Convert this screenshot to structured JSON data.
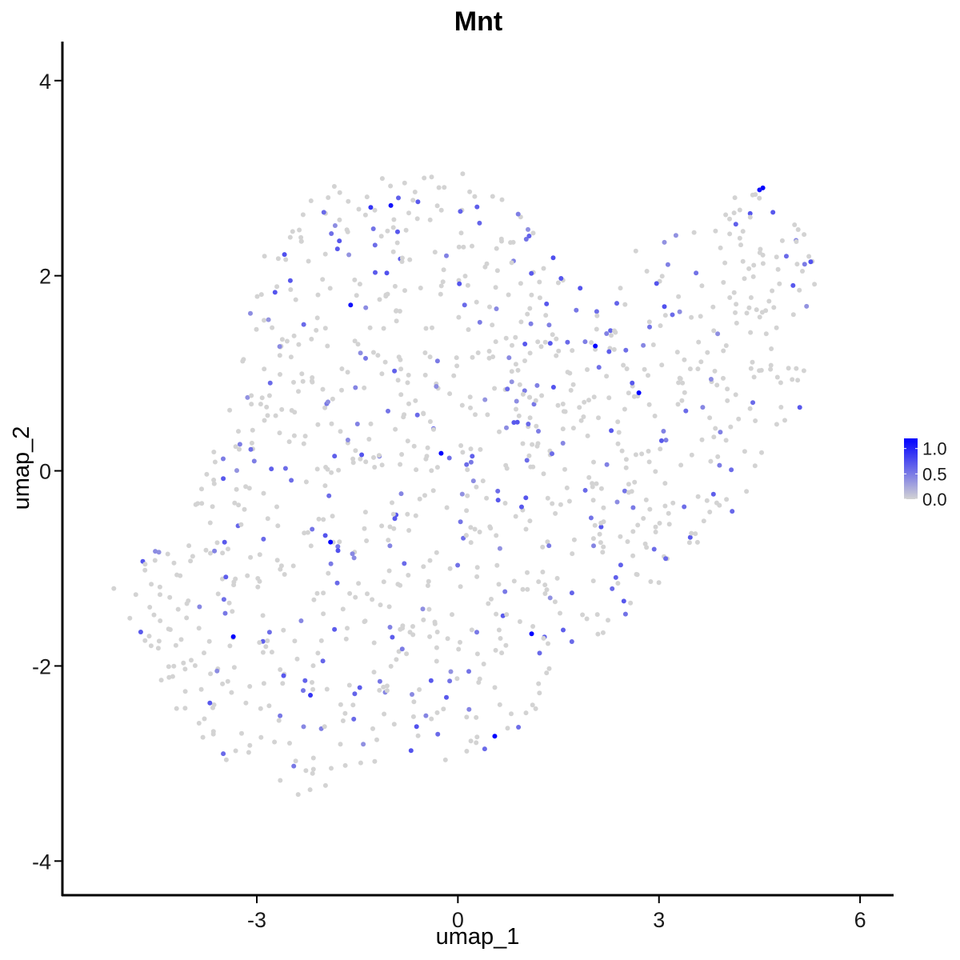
{
  "chart_data": {
    "type": "scatter",
    "title": "Mnt",
    "xlabel": "umap_1",
    "ylabel": "umap_2",
    "xlim": [
      -5.9,
      6.5
    ],
    "ylim": [
      -4.35,
      4.4
    ],
    "x_ticks": [
      -3,
      0,
      3,
      6
    ],
    "x_tick_labels": [
      "-3",
      "0",
      "3",
      "6"
    ],
    "y_ticks": [
      -4,
      -2,
      0,
      2,
      4
    ],
    "y_tick_labels": [
      "-4",
      "-2",
      "0",
      "2",
      "4"
    ],
    "grid": false,
    "legend": {
      "placement": "right",
      "type": "colorbar",
      "min": 0.0,
      "max": 1.2,
      "tick_values": [
        1.0,
        0.5,
        0.0
      ],
      "tick_labels": [
        "1.0",
        "0.5",
        "0.0"
      ],
      "low_color": "#d3d3d3",
      "high_color": "#0000ff"
    },
    "colors": {
      "low": "#d3d3d3",
      "high": "#0000ff"
    },
    "points": [
      {
        "x": 4.55,
        "y": 2.9,
        "v": 1.2
      },
      {
        "x": 4.5,
        "y": 2.88,
        "v": 1.1
      },
      {
        "x": -1.0,
        "y": 2.72,
        "v": 1.1
      },
      {
        "x": -1.3,
        "y": 2.7,
        "v": 0.9
      },
      {
        "x": -1.6,
        "y": 1.7,
        "v": 1.1
      },
      {
        "x": 2.05,
        "y": 1.28,
        "v": 1.2
      },
      {
        "x": 2.7,
        "y": 0.8,
        "v": 1.2
      },
      {
        "x": -0.25,
        "y": 0.18,
        "v": 1.2
      },
      {
        "x": -1.9,
        "y": -0.73,
        "v": 1.2
      },
      {
        "x": -3.35,
        "y": -1.7,
        "v": 1.2
      },
      {
        "x": 1.1,
        "y": -1.67,
        "v": 1.2
      },
      {
        "x": 0.55,
        "y": -2.72,
        "v": 1.2
      },
      {
        "x": -2.2,
        "y": -2.3,
        "v": 0.9
      },
      {
        "x": 0.1,
        "y": 1.7,
        "v": 0.6
      },
      {
        "x": 2.6,
        "y": 0.9,
        "v": 0.7
      },
      {
        "x": 5.0,
        "y": 1.9,
        "v": 0.7
      },
      {
        "x": 5.1,
        "y": 0.65,
        "v": 0.7
      },
      {
        "x": 4.4,
        "y": 0.7,
        "v": 0.6
      },
      {
        "x": 4.9,
        "y": 2.2,
        "v": 0.6
      },
      {
        "x": 4.7,
        "y": 2.65,
        "v": 0.7
      },
      {
        "x": 3.2,
        "y": 1.6,
        "v": 0.6
      },
      {
        "x": 1.0,
        "y": 1.3,
        "v": 0.7
      },
      {
        "x": 1.05,
        "y": 0.48,
        "v": 0.6
      },
      {
        "x": 0.6,
        "y": -0.3,
        "v": 0.7
      },
      {
        "x": -3.5,
        "y": -0.08,
        "v": 0.7
      },
      {
        "x": -2.8,
        "y": 0.9,
        "v": 0.6
      },
      {
        "x": -2.5,
        "y": 1.95,
        "v": 0.7
      },
      {
        "x": -2.3,
        "y": 1.5,
        "v": 0.6
      },
      {
        "x": -0.9,
        "y": 2.45,
        "v": 0.7
      },
      {
        "x": -2.0,
        "y": 2.65,
        "v": 0.6
      },
      {
        "x": -3.7,
        "y": -2.38,
        "v": 0.7
      },
      {
        "x": -3.5,
        "y": -2.9,
        "v": 0.6
      },
      {
        "x": -2.6,
        "y": -2.1,
        "v": 0.7
      },
      {
        "x": -0.3,
        "y": -2.7,
        "v": 0.6
      },
      {
        "x": 0.4,
        "y": -2.85,
        "v": 0.6
      },
      {
        "x": -0.4,
        "y": -2.15,
        "v": 0.7
      },
      {
        "x": 1.7,
        "y": -1.75,
        "v": 0.6
      },
      {
        "x": 3.1,
        "y": -0.9,
        "v": 0.6
      },
      {
        "x": 1.9,
        "y": -0.2,
        "v": 0.6
      },
      {
        "x": 0.95,
        "y": -0.37,
        "v": 0.7
      },
      {
        "x": -0.8,
        "y": -0.95,
        "v": 0.6
      },
      {
        "x": -1.8,
        "y": -1.15,
        "v": 0.6
      },
      {
        "x": -2.9,
        "y": -0.7,
        "v": 0.6
      }
    ]
  }
}
